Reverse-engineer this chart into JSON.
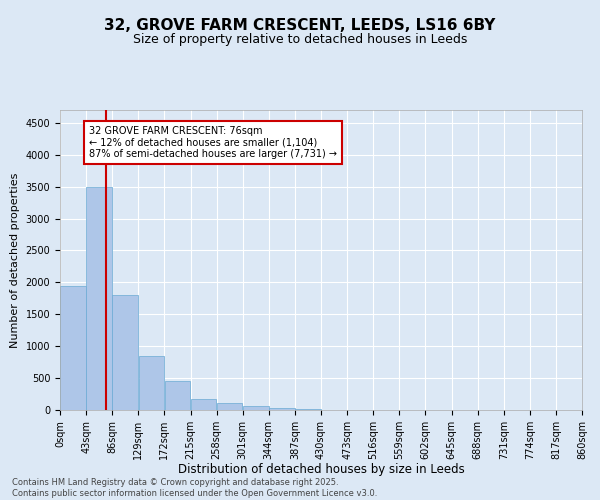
{
  "title1": "32, GROVE FARM CRESCENT, LEEDS, LS16 6BY",
  "title2": "Size of property relative to detached houses in Leeds",
  "xlabel": "Distribution of detached houses by size in Leeds",
  "ylabel": "Number of detached properties",
  "bin_edges": [
    0,
    43,
    86,
    129,
    172,
    215,
    258,
    301,
    344,
    387,
    430,
    473,
    516,
    559,
    602,
    645,
    688,
    731,
    774,
    817,
    860
  ],
  "bin_labels": [
    "0sqm",
    "43sqm",
    "86sqm",
    "129sqm",
    "172sqm",
    "215sqm",
    "258sqm",
    "301sqm",
    "344sqm",
    "387sqm",
    "430sqm",
    "473sqm",
    "516sqm",
    "559sqm",
    "602sqm",
    "645sqm",
    "688sqm",
    "731sqm",
    "774sqm",
    "817sqm",
    "860sqm"
  ],
  "bar_heights": [
    1950,
    3500,
    1800,
    850,
    450,
    175,
    110,
    60,
    30,
    15,
    5,
    2,
    1,
    0,
    0,
    0,
    0,
    0,
    0,
    0
  ],
  "bar_color": "#aec6e8",
  "bar_edge_color": "#6aaad4",
  "vline_x": 76,
  "vline_color": "#cc0000",
  "annotation_box_text": "32 GROVE FARM CRESCENT: 76sqm\n← 12% of detached houses are smaller (1,104)\n87% of semi-detached houses are larger (7,731) →",
  "ylim": [
    0,
    4700
  ],
  "yticks": [
    0,
    500,
    1000,
    1500,
    2000,
    2500,
    3000,
    3500,
    4000,
    4500
  ],
  "background_color": "#dce8f5",
  "plot_bg_color": "#dce8f5",
  "grid_color": "#ffffff",
  "footer_line1": "Contains HM Land Registry data © Crown copyright and database right 2025.",
  "footer_line2": "Contains public sector information licensed under the Open Government Licence v3.0.",
  "title1_fontsize": 11,
  "title2_fontsize": 9,
  "xlabel_fontsize": 8.5,
  "ylabel_fontsize": 8,
  "tick_fontsize": 7,
  "annotation_fontsize": 7,
  "footer_fontsize": 6
}
